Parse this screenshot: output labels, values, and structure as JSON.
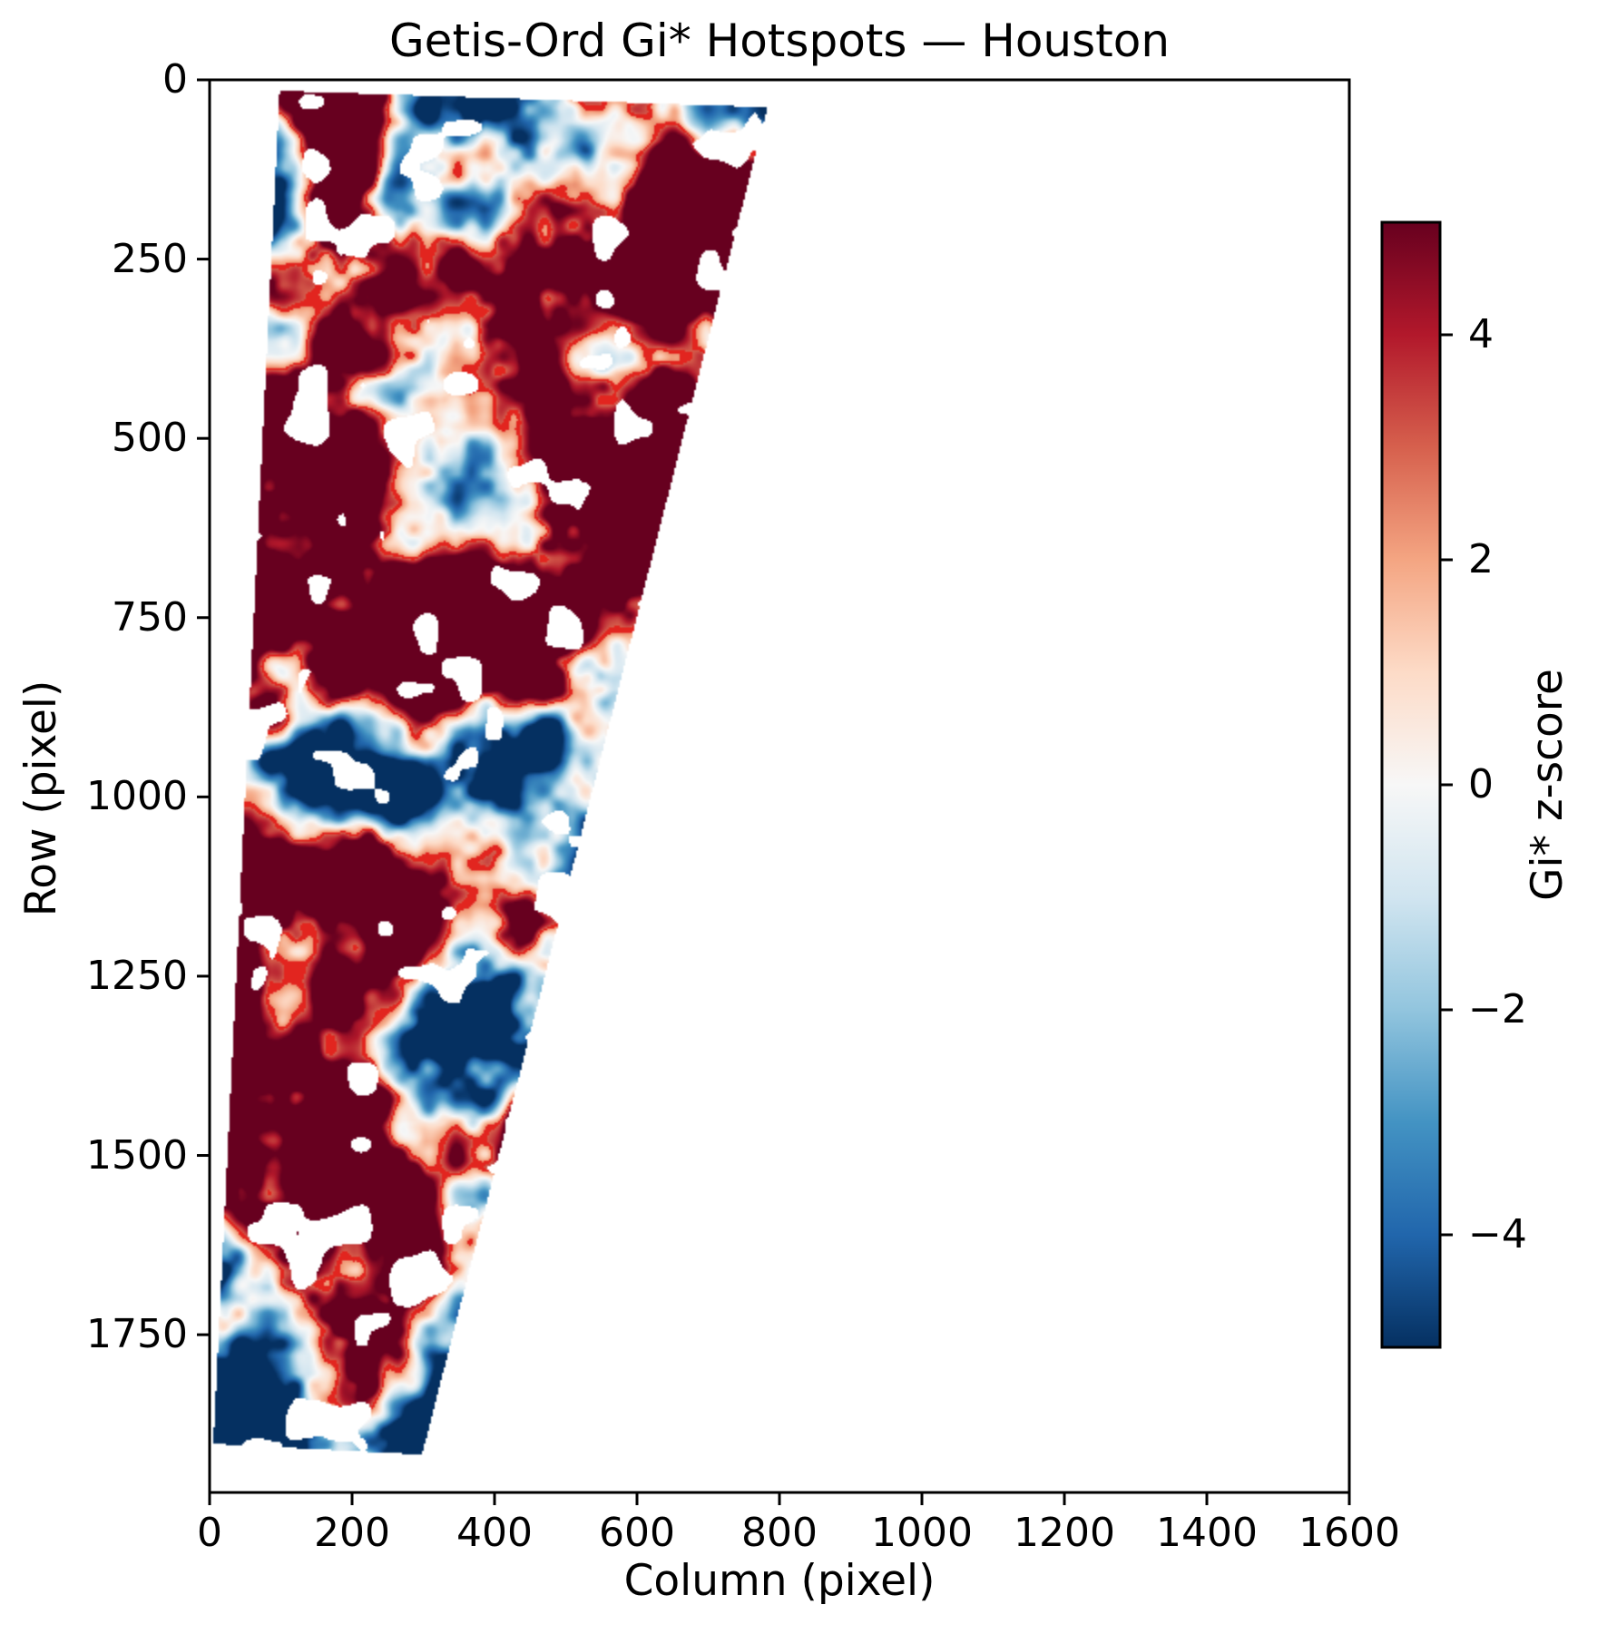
{
  "chart_data": {
    "type": "heatmap",
    "title": "Getis-Ord Gi* Hotspots — Houston",
    "xlabel": "Column (pixel)",
    "ylabel": "Row (pixel)",
    "xlim": [
      0,
      1600
    ],
    "ylim": [
      1970,
      0
    ],
    "x_ticks": [
      0,
      200,
      400,
      600,
      800,
      1000,
      1200,
      1400,
      1600
    ],
    "y_ticks": [
      0,
      250,
      500,
      750,
      1000,
      1250,
      1500,
      1750
    ],
    "grid": false,
    "legend": null,
    "colorbar": {
      "label": "Gi* z-score",
      "ticks": [
        4,
        2,
        0,
        -2,
        -4
      ],
      "vmin": -5,
      "vmax": 5,
      "colormap": "RdBu_r",
      "colormap_stops": [
        "#053061",
        "#2166ac",
        "#4393c3",
        "#92c5de",
        "#d1e5f0",
        "#f7f7f7",
        "#fddbc7",
        "#f4a582",
        "#d6604d",
        "#b2182b",
        "#67001f"
      ]
    },
    "hot_contour": {
      "threshold_z": 2.6,
      "color": "#e2251f"
    },
    "hot_color_saturated": "#67001f",
    "cold_color_saturated": "#053061",
    "nodata_color": "#ffffff",
    "swath_polygon_col_row": [
      [
        97,
        14
      ],
      [
        782,
        37
      ],
      [
        297,
        1917
      ],
      [
        4,
        1902
      ]
    ],
    "band_height_rows": 100,
    "hot_fraction_by_band": [
      0.38,
      0.48,
      0.62,
      0.66,
      0.6,
      0.72,
      0.62,
      0.55,
      0.6,
      0.3,
      0.48,
      0.68,
      0.55,
      0.5,
      0.58,
      0.32,
      0.16,
      0.1,
      0.07,
      0.05
    ],
    "mask_fraction_by_band": [
      0.02,
      0.05,
      0.03,
      0.03,
      0.04,
      0.03,
      0.03,
      0.05,
      0.09,
      0.13,
      0.05,
      0.03,
      0.08,
      0.07,
      0.04,
      0.06,
      0.11,
      0.08,
      0.06,
      0.04
    ],
    "description": "Slanted satellite-swath quadrilateral heatmap of Getis-Ord Gi* z-scores over Houston; saturated dark-red hotspot clusters (z >= +5) outlined by bright red significance contours on a dark-blue coldspot background (z <= -5), with white no-data holes; area right of the swath is empty."
  }
}
